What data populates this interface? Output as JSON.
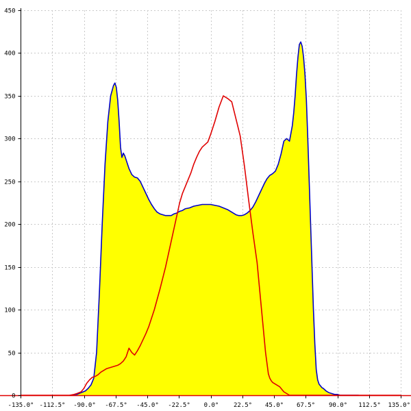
{
  "chart_data": {
    "type": "area",
    "xlabel": "",
    "ylabel": "",
    "title": "",
    "xlim": [
      -135,
      135
    ],
    "ylim": [
      0,
      450
    ],
    "grid": true,
    "x_ticks": [
      -135,
      -112.5,
      -90,
      -67.5,
      -45,
      -22.5,
      0,
      22.5,
      45,
      67.5,
      90,
      112.5,
      135
    ],
    "x_tick_labels": [
      "-135.0°",
      "-112.5°",
      "-90.0°",
      "-67.5°",
      "-45.0°",
      "-22.5°",
      "0.0°",
      "22.5°",
      "45.0°",
      "67.5°",
      "90.0°",
      "112.5°",
      "135.0°"
    ],
    "y_ticks": [
      0,
      50,
      100,
      150,
      200,
      250,
      300,
      350,
      400,
      450
    ],
    "y_tick_labels": [
      "0",
      "50",
      "100",
      "150",
      "200",
      "250",
      "300",
      "350",
      "400",
      "450"
    ],
    "series": [
      {
        "color": "#0000c8",
        "fill": "#ffff00",
        "x": [
          -100,
          -95,
          -92,
          -89,
          -87,
          -85,
          -83,
          -81,
          -79,
          -77,
          -75,
          -73,
          -71,
          -69,
          -68,
          -67,
          -66,
          -65,
          -64,
          -63,
          -62,
          -61,
          -60,
          -58,
          -56,
          -54,
          -52,
          -50,
          -48,
          -46,
          -44,
          -42,
          -40,
          -38,
          -36,
          -34,
          -32,
          -30,
          -28,
          -26,
          -24,
          -22,
          -20,
          -18,
          -15,
          -12,
          -9,
          -6,
          -3,
          0,
          3,
          6,
          9,
          12,
          15,
          18,
          20,
          22,
          24,
          26,
          28,
          30,
          32,
          34,
          36,
          38,
          40,
          42,
          44,
          46,
          48,
          50,
          52,
          54,
          56,
          58,
          59,
          60,
          61,
          62,
          63,
          64,
          65,
          66,
          67,
          68,
          69,
          70,
          71,
          72,
          73,
          74,
          75,
          76,
          77,
          78,
          79,
          80,
          82,
          84,
          86,
          88,
          90,
          92,
          95,
          100,
          105
        ],
        "y": [
          0,
          1,
          3,
          5,
          8,
          12,
          20,
          50,
          120,
          200,
          270,
          320,
          350,
          362,
          365,
          360,
          345,
          320,
          290,
          278,
          283,
          280,
          275,
          265,
          258,
          255,
          254,
          250,
          243,
          236,
          229,
          223,
          218,
          214,
          212,
          211,
          210,
          210,
          210,
          212,
          213,
          215,
          216,
          218,
          219,
          221,
          222,
          223,
          223,
          223,
          222,
          221,
          219,
          217,
          214,
          211,
          210,
          210,
          211,
          213,
          216,
          220,
          226,
          233,
          240,
          247,
          253,
          257,
          259,
          262,
          270,
          282,
          297,
          300,
          297,
          315,
          330,
          350,
          375,
          395,
          410,
          413,
          408,
          395,
          375,
          345,
          300,
          250,
          200,
          150,
          100,
          60,
          30,
          18,
          13,
          11,
          9,
          8,
          5,
          3,
          2,
          1,
          1,
          0,
          0,
          0,
          0
        ]
      },
      {
        "color": "#e00000",
        "x": [
          -135,
          -105,
          -100,
          -97,
          -95,
          -92,
          -90,
          -88,
          -86,
          -84,
          -82,
          -80,
          -78,
          -76,
          -74,
          -72,
          -70,
          -68,
          -66,
          -64,
          -62,
          -60,
          -58,
          -56,
          -54,
          -52,
          -50,
          -48,
          -46,
          -44,
          -42,
          -40,
          -38,
          -36,
          -34,
          -32,
          -30,
          -28,
          -26,
          -24,
          -22,
          -20,
          -18,
          -16,
          -14,
          -12,
          -10,
          -8,
          -6,
          -4,
          -2,
          0,
          3,
          6,
          9,
          12,
          15,
          18,
          21,
          24,
          27,
          30,
          33,
          35,
          37,
          39,
          41,
          42,
          43,
          44,
          45,
          46,
          47,
          48,
          49,
          50,
          51,
          52,
          53,
          54,
          55,
          56,
          57,
          58,
          60,
          62,
          64,
          66,
          68,
          70,
          72,
          75,
          78,
          81,
          84,
          87,
          90,
          95,
          100,
          135
        ],
        "y": [
          0,
          0,
          0,
          1,
          2,
          4,
          8,
          14,
          18,
          21,
          22,
          24,
          27,
          29,
          31,
          32,
          33,
          34,
          35,
          37,
          40,
          45,
          55,
          50,
          47,
          52,
          58,
          65,
          72,
          80,
          90,
          100,
          112,
          124,
          137,
          150,
          165,
          180,
          195,
          210,
          225,
          236,
          244,
          252,
          260,
          270,
          278,
          285,
          290,
          293,
          296,
          305,
          320,
          337,
          350,
          347,
          343,
          323,
          303,
          268,
          228,
          190,
          155,
          120,
          85,
          50,
          25,
          20,
          17,
          15,
          14,
          13,
          12,
          11,
          10,
          8,
          6,
          4,
          3,
          2,
          1,
          0,
          0,
          0,
          0,
          0,
          0,
          0,
          0,
          0,
          0,
          0,
          0,
          0,
          0,
          0,
          0,
          0,
          0,
          0
        ]
      }
    ]
  }
}
